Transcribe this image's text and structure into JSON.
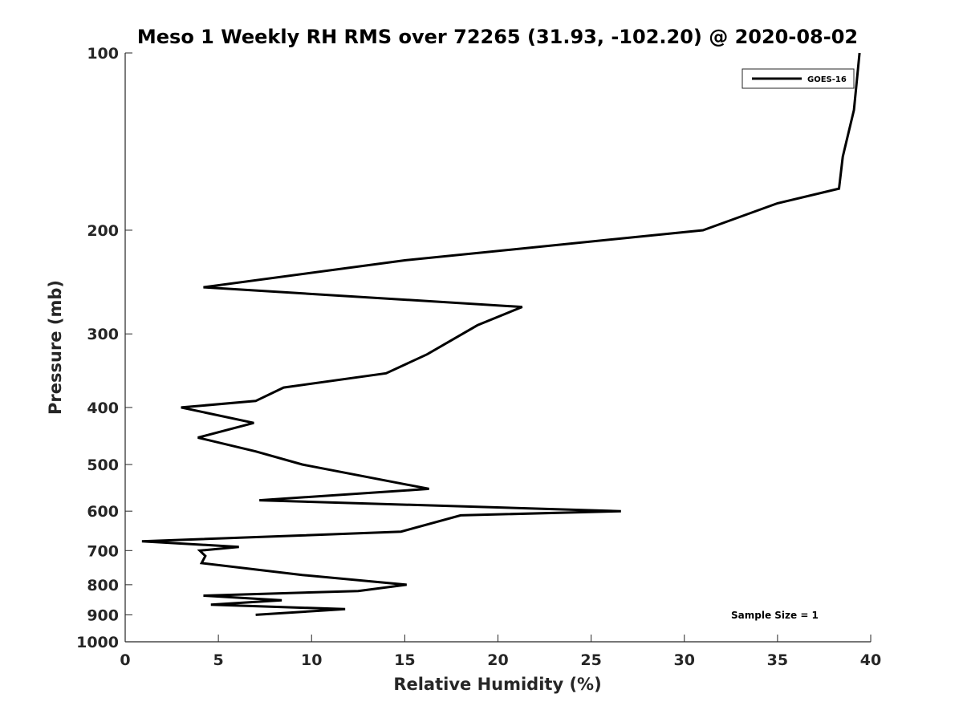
{
  "chart_data": {
    "type": "line",
    "title": "Meso 1 Weekly RH RMS over 72265 (31.93, -102.20) @ 2020-08-02",
    "xlabel": "Relative Humidity (%)",
    "ylabel": "Pressure (mb)",
    "xlim": [
      0,
      40
    ],
    "ylim": [
      100,
      1000
    ],
    "y_scale": "log",
    "y_reversed": true,
    "grid": false,
    "x_ticks": [
      0,
      5,
      10,
      15,
      20,
      25,
      30,
      35,
      40
    ],
    "x_tick_labels": [
      "0",
      "5",
      "10",
      "15",
      "20",
      "25",
      "30",
      "35",
      "40"
    ],
    "y_ticks": [
      100,
      200,
      300,
      400,
      500,
      600,
      700,
      800,
      900,
      1000
    ],
    "y_tick_labels": [
      "100",
      "200",
      "300",
      "400",
      "500",
      "600",
      "700",
      "800",
      "900",
      "1000"
    ],
    "legend_placement": "top-right",
    "series": [
      {
        "name": "GOES-16",
        "color": "#000000",
        "points": [
          {
            "x": 39.4,
            "y": 100
          },
          {
            "x": 39.1,
            "y": 125
          },
          {
            "x": 38.5,
            "y": 150
          },
          {
            "x": 38.3,
            "y": 170
          },
          {
            "x": 35.0,
            "y": 180
          },
          {
            "x": 31.0,
            "y": 200
          },
          {
            "x": 15.0,
            "y": 225
          },
          {
            "x": 4.2,
            "y": 250
          },
          {
            "x": 21.3,
            "y": 270
          },
          {
            "x": 18.9,
            "y": 290
          },
          {
            "x": 16.2,
            "y": 325
          },
          {
            "x": 14.0,
            "y": 350
          },
          {
            "x": 8.5,
            "y": 370
          },
          {
            "x": 7.0,
            "y": 390
          },
          {
            "x": 3.0,
            "y": 400
          },
          {
            "x": 6.9,
            "y": 425
          },
          {
            "x": 3.9,
            "y": 450
          },
          {
            "x": 7.0,
            "y": 475
          },
          {
            "x": 9.5,
            "y": 500
          },
          {
            "x": 16.3,
            "y": 550
          },
          {
            "x": 7.2,
            "y": 575
          },
          {
            "x": 26.6,
            "y": 600
          },
          {
            "x": 18.0,
            "y": 610
          },
          {
            "x": 14.8,
            "y": 650
          },
          {
            "x": 9.4,
            "y": 660
          },
          {
            "x": 0.9,
            "y": 675
          },
          {
            "x": 6.1,
            "y": 690
          },
          {
            "x": 4.0,
            "y": 700
          },
          {
            "x": 4.3,
            "y": 715
          },
          {
            "x": 4.1,
            "y": 735
          },
          {
            "x": 9.5,
            "y": 770
          },
          {
            "x": 15.1,
            "y": 800
          },
          {
            "x": 12.5,
            "y": 820
          },
          {
            "x": 4.2,
            "y": 835
          },
          {
            "x": 8.4,
            "y": 850
          },
          {
            "x": 4.6,
            "y": 865
          },
          {
            "x": 11.8,
            "y": 880
          },
          {
            "x": 7.0,
            "y": 900
          }
        ]
      }
    ],
    "annotations": [
      {
        "text": "Sample Size = 1"
      }
    ]
  }
}
